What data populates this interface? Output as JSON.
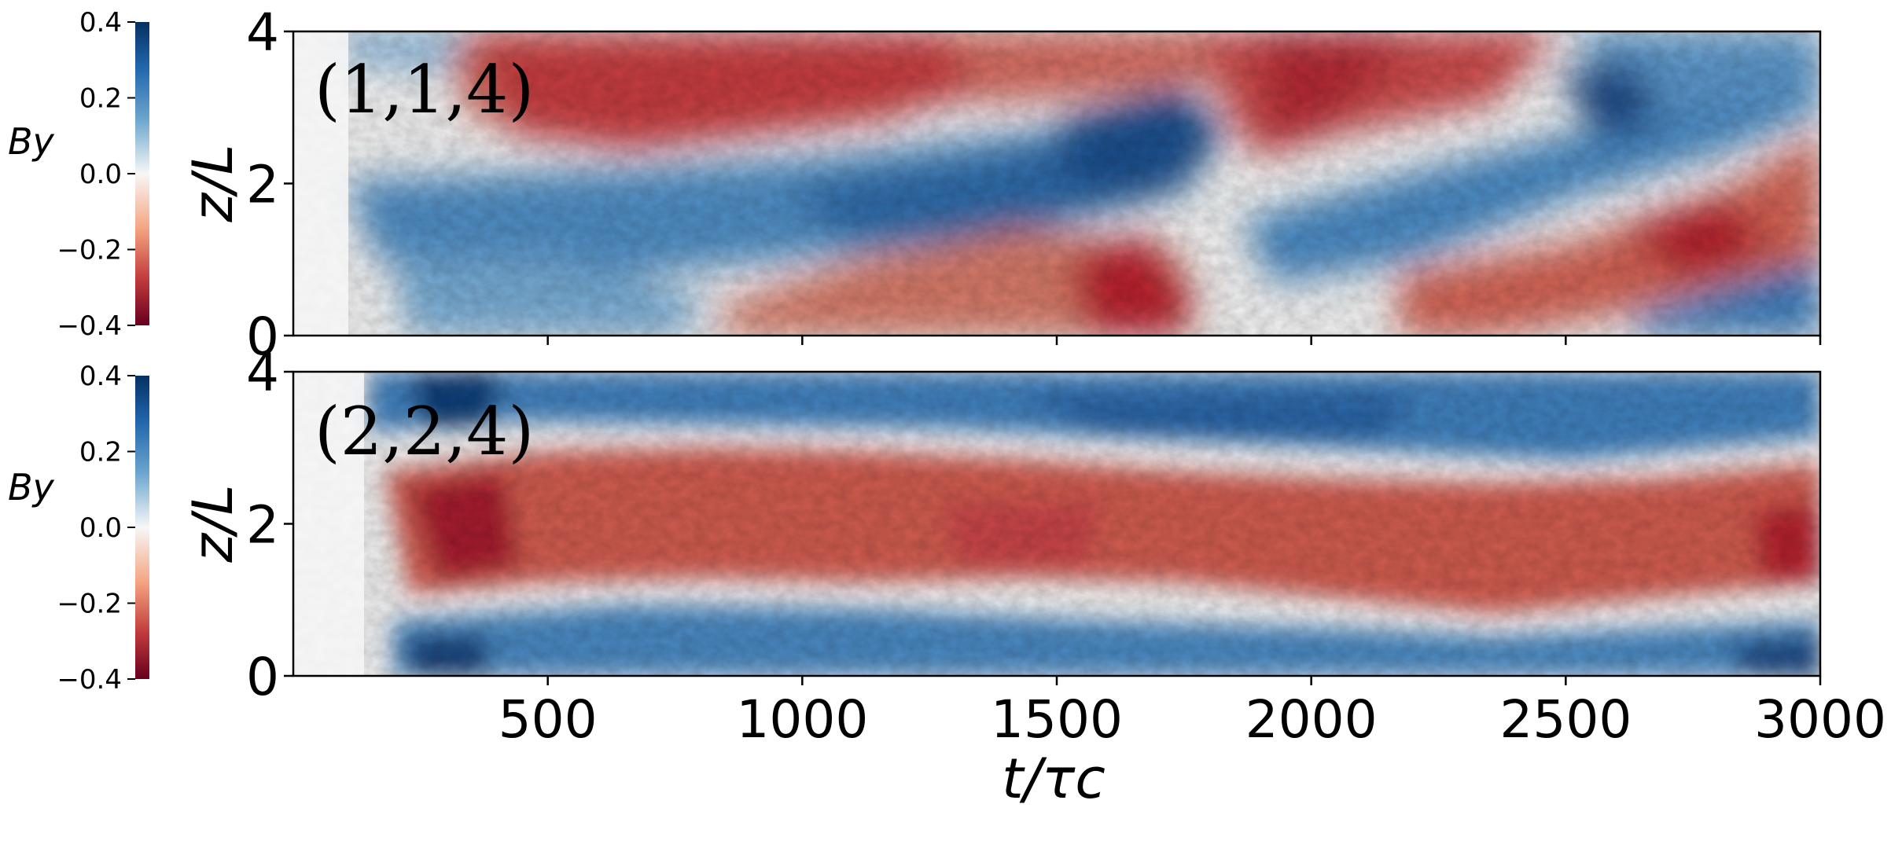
{
  "colors": {
    "positive": "#1f5fa8",
    "neutral": "#f7f7f7",
    "negative": "#b2182b",
    "axis": "#000000"
  },
  "chart_data": [
    {
      "type": "heatmap",
      "annotation": "(1,1,4)",
      "xlabel": "",
      "ylabel": "z/L",
      "xlim": [
        0,
        3000
      ],
      "ylim": [
        0,
        4
      ],
      "xticks": [
        "500",
        "1000",
        "1500",
        "2000",
        "2500",
        "3000"
      ],
      "yticks": [
        "0",
        "2",
        "4"
      ],
      "colorbar": {
        "label": "By",
        "range": [
          -0.4,
          0.4
        ],
        "ticks": [
          "0.4",
          "0.2",
          "0.0",
          "−0.2",
          "−0.4"
        ]
      }
    },
    {
      "type": "heatmap",
      "annotation": "(2,2,4)",
      "xlabel": "t/τc",
      "ylabel": "z/L",
      "xlim": [
        0,
        3000
      ],
      "ylim": [
        0,
        4
      ],
      "xticks": [
        "500",
        "1000",
        "1500",
        "2000",
        "2500",
        "3000"
      ],
      "yticks": [
        "0",
        "2",
        "4"
      ],
      "colorbar": {
        "label": "By",
        "range": [
          -0.4,
          0.4
        ],
        "ticks": [
          "0.4",
          "0.2",
          "0.0",
          "−0.2",
          "−0.4"
        ]
      }
    }
  ]
}
